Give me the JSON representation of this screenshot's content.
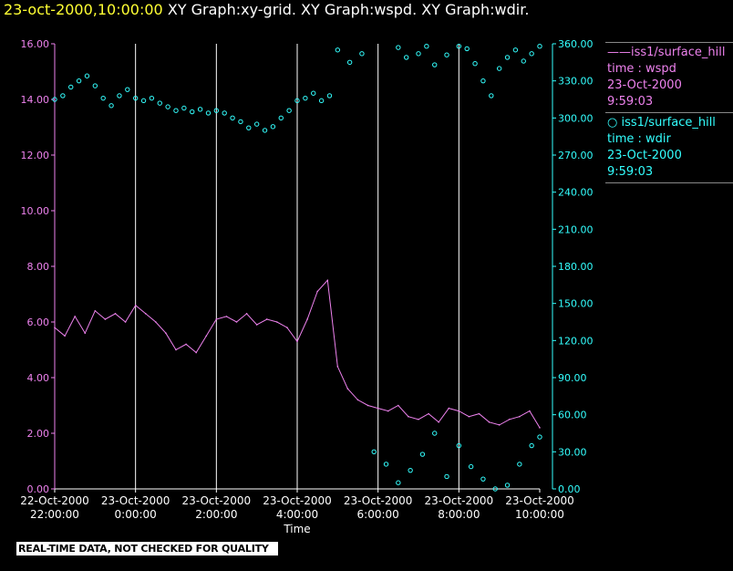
{
  "header": {
    "timestamp": "23-oct-2000,10:00:00",
    "titles": "XY Graph:xy-grid.  XY Graph:wspd.  XY Graph:wdir."
  },
  "legend": {
    "entries": [
      {
        "marker": "——",
        "station": "iss1/surface_hill",
        "variable": "time : wspd",
        "date": "23-Oct-2000",
        "time": "9:59:03"
      },
      {
        "marker": "○",
        "station": "iss1/surface_hill",
        "variable": "time : wdir",
        "date": "23-Oct-2000",
        "time": "9:59:03"
      }
    ]
  },
  "footer": {
    "note": "REAL-TIME DATA, NOT CHECKED FOR QUALITY"
  },
  "colors": {
    "wspd": "#ee82ee",
    "wdir": "#33ffff",
    "grid": "#ffffff",
    "header_timestamp": "#ffff33"
  },
  "chart_data": {
    "type": "line",
    "xlabel": "Time",
    "x_range_hours": [
      22,
      34
    ],
    "x_ticks": [
      {
        "hour": 22,
        "date": "22-Oct-2000",
        "time": "22:00:00"
      },
      {
        "hour": 24,
        "date": "23-Oct-2000",
        "time": "0:00:00"
      },
      {
        "hour": 26,
        "date": "23-Oct-2000",
        "time": "2:00:00"
      },
      {
        "hour": 28,
        "date": "23-Oct-2000",
        "time": "4:00:00"
      },
      {
        "hour": 30,
        "date": "23-Oct-2000",
        "time": "6:00:00"
      },
      {
        "hour": 32,
        "date": "23-Oct-2000",
        "time": "8:00:00"
      },
      {
        "hour": 34,
        "date": "23-Oct-2000",
        "time": "10:00:00"
      }
    ],
    "y_left": {
      "min": 0,
      "max": 16,
      "ticks": [
        "0.00",
        "2.00",
        "4.00",
        "6.00",
        "8.00",
        "10.00",
        "12.00",
        "14.00",
        "16.00"
      ]
    },
    "y_right": {
      "min": 0,
      "max": 360,
      "ticks": [
        "0.00",
        "30.00",
        "60.00",
        "90.00",
        "120.00",
        "150.00",
        "180.00",
        "210.00",
        "240.00",
        "270.00",
        "300.00",
        "330.00",
        "360.00"
      ]
    },
    "grid": "vertical lines at each x tick",
    "series": [
      {
        "name": "iss1/surface_hill time : wspd",
        "axis": "left",
        "style": "line",
        "x": [
          22.0,
          22.25,
          22.5,
          22.75,
          23.0,
          23.25,
          23.5,
          23.75,
          24.0,
          24.25,
          24.5,
          24.75,
          25.0,
          25.25,
          25.5,
          25.75,
          26.0,
          26.25,
          26.5,
          26.75,
          27.0,
          27.25,
          27.5,
          27.75,
          28.0,
          28.25,
          28.5,
          28.75,
          29.0,
          29.25,
          29.5,
          29.75,
          30.0,
          30.25,
          30.5,
          30.75,
          31.0,
          31.25,
          31.5,
          31.75,
          32.0,
          32.25,
          32.5,
          32.75,
          33.0,
          33.25,
          33.5,
          33.75,
          34.0
        ],
        "y": [
          5.8,
          5.5,
          6.2,
          5.6,
          6.4,
          6.1,
          6.3,
          6.0,
          6.6,
          6.3,
          6.0,
          5.6,
          5.0,
          5.2,
          4.9,
          5.5,
          6.1,
          6.2,
          6.0,
          6.3,
          5.9,
          6.1,
          6.0,
          5.8,
          5.3,
          6.1,
          7.1,
          7.5,
          4.4,
          3.6,
          3.2,
          3.0,
          2.9,
          2.8,
          3.0,
          2.6,
          2.5,
          2.7,
          2.4,
          2.9,
          2.8,
          2.6,
          2.7,
          2.4,
          2.3,
          2.5,
          2.6,
          2.8,
          2.2
        ]
      },
      {
        "name": "iss1/surface_hill time : wdir",
        "axis": "right",
        "style": "circles",
        "x": [
          22.0,
          22.2,
          22.4,
          22.6,
          22.8,
          23.0,
          23.2,
          23.4,
          23.6,
          23.8,
          24.0,
          24.2,
          24.4,
          24.6,
          24.8,
          25.0,
          25.2,
          25.4,
          25.6,
          25.8,
          26.0,
          26.2,
          26.4,
          26.6,
          26.8,
          27.0,
          27.2,
          27.4,
          27.6,
          27.8,
          28.0,
          28.2,
          28.4,
          28.6,
          28.8,
          29.0,
          29.3,
          29.6,
          29.9,
          30.2,
          30.5,
          30.8,
          31.1,
          31.4,
          31.7,
          32.0,
          32.3,
          32.6,
          32.9,
          33.2,
          33.5,
          33.8,
          34.0
        ],
        "y": [
          315,
          318,
          325,
          330,
          334,
          326,
          316,
          310,
          318,
          323,
          316,
          314,
          316,
          312,
          309,
          306,
          308,
          305,
          307,
          304,
          306,
          304,
          300,
          297,
          292,
          295,
          290,
          293,
          300,
          306,
          314,
          316,
          320,
          314,
          318,
          355,
          345,
          352,
          30,
          20,
          5,
          15,
          28,
          45,
          10,
          35,
          18,
          8,
          0,
          3,
          20,
          35,
          42
        ]
      },
      {
        "name": "iss1/surface_hill time : wdir (upper cluster)",
        "axis": "right",
        "style": "circles",
        "x": [
          30.5,
          30.7,
          31.0,
          31.2,
          31.4,
          31.7,
          32.0,
          32.2,
          32.4,
          32.6,
          32.8,
          33.0,
          33.2,
          33.4,
          33.6,
          33.8,
          34.0
        ],
        "y": [
          357,
          349,
          352,
          358,
          343,
          351,
          358,
          356,
          344,
          330,
          318,
          340,
          349,
          355,
          346,
          352,
          358
        ]
      }
    ]
  }
}
